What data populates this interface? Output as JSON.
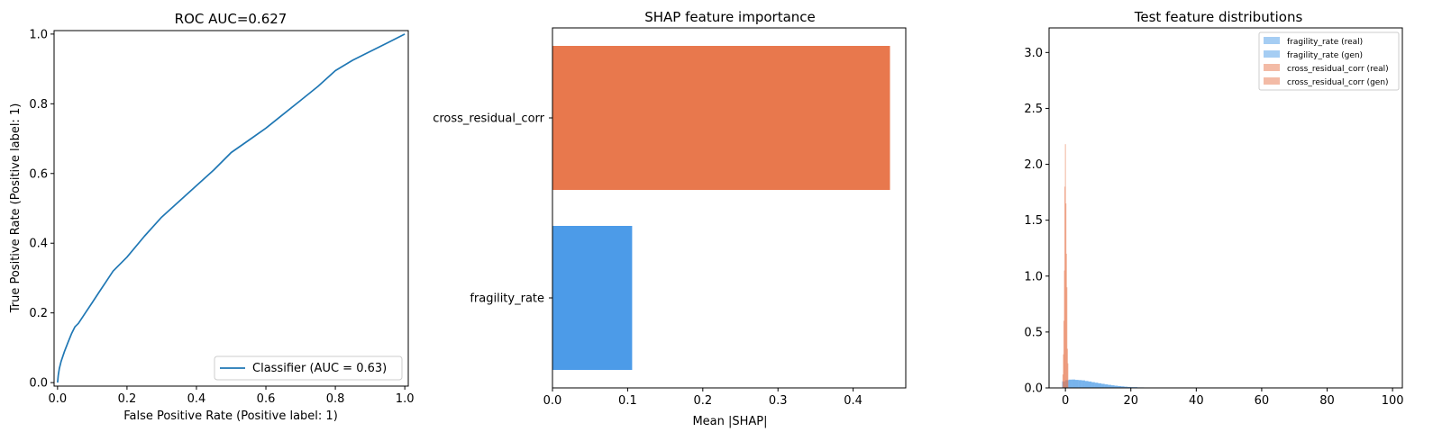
{
  "chart_data": [
    {
      "type": "line",
      "title": "ROC  AUC=0.627",
      "xlabel": "False Positive Rate (Positive label: 1)",
      "ylabel": "True Positive Rate (Positive label: 1)",
      "xlim": [
        -0.01,
        1.01
      ],
      "ylim": [
        -0.01,
        1.01
      ],
      "xticks": [
        0.0,
        0.2,
        0.4,
        0.6,
        0.8,
        1.0
      ],
      "xtick_labels": [
        "0.0",
        "0.2",
        "0.4",
        "0.6",
        "0.8",
        "1.0"
      ],
      "yticks": [
        0.0,
        0.2,
        0.4,
        0.6,
        0.8,
        1.0
      ],
      "ytick_labels": [
        "0.0",
        "0.2",
        "0.4",
        "0.6",
        "0.8",
        "1.0"
      ],
      "legend": "lower-right",
      "grid": false,
      "series": [
        {
          "name": "Classifier (AUC = 0.63)",
          "color": "#1f77b4",
          "x": [
            0.0,
            0.002,
            0.005,
            0.01,
            0.02,
            0.03,
            0.04,
            0.05,
            0.06,
            0.08,
            0.1,
            0.12,
            0.14,
            0.16,
            0.2,
            0.25,
            0.3,
            0.35,
            0.4,
            0.45,
            0.5,
            0.55,
            0.6,
            0.65,
            0.7,
            0.75,
            0.8,
            0.85,
            0.9,
            0.95,
            1.0
          ],
          "y": [
            0.0,
            0.02,
            0.04,
            0.06,
            0.09,
            0.115,
            0.14,
            0.16,
            0.17,
            0.2,
            0.23,
            0.26,
            0.29,
            0.32,
            0.36,
            0.42,
            0.475,
            0.52,
            0.565,
            0.61,
            0.66,
            0.695,
            0.73,
            0.77,
            0.81,
            0.85,
            0.895,
            0.925,
            0.95,
            0.975,
            1.0
          ]
        }
      ]
    },
    {
      "type": "bar",
      "orientation": "horizontal",
      "title": "SHAP feature importance",
      "xlabel": "Mean |SHAP|",
      "ylabel": "",
      "xlim": [
        0,
        0.47
      ],
      "xticks": [
        0.0,
        0.1,
        0.2,
        0.3,
        0.4
      ],
      "xtick_labels": [
        "0.0",
        "0.1",
        "0.2",
        "0.3",
        "0.4"
      ],
      "grid": false,
      "categories": [
        "cross_residual_corr",
        "fragility_rate"
      ],
      "values": [
        0.449,
        0.106
      ],
      "colors": [
        "#e8784d",
        "#4c9be8"
      ]
    },
    {
      "type": "histogram",
      "title": "Test feature distributions",
      "xlabel": "",
      "ylabel": "",
      "xlim": [
        -5,
        103
      ],
      "ylim": [
        0,
        3.22
      ],
      "xticks": [
        0,
        20,
        40,
        60,
        80,
        100
      ],
      "xtick_labels": [
        "0",
        "20",
        "40",
        "60",
        "80",
        "100"
      ],
      "yticks": [
        0.0,
        0.5,
        1.0,
        1.5,
        2.0,
        2.5,
        3.0
      ],
      "ytick_labels": [
        "0.0",
        "0.5",
        "1.0",
        "1.5",
        "2.0",
        "2.5",
        "3.0"
      ],
      "legend": "top-right",
      "grid": false,
      "series": [
        {
          "name": "fragility_rate (real)",
          "color": "#4c9be8",
          "opacity": 0.5,
          "bins": [
            [
              -1,
              0,
              0.06
            ],
            [
              0,
              1,
              0.07
            ],
            [
              1,
              2,
              0.075
            ],
            [
              2,
              3,
              0.075
            ],
            [
              3,
              4,
              0.072
            ],
            [
              4,
              5,
              0.07
            ],
            [
              5,
              6,
              0.068
            ],
            [
              6,
              7,
              0.062
            ],
            [
              7,
              8,
              0.058
            ],
            [
              8,
              9,
              0.052
            ],
            [
              9,
              10,
              0.047
            ],
            [
              10,
              11,
              0.042
            ],
            [
              11,
              12,
              0.037
            ],
            [
              12,
              13,
              0.032
            ],
            [
              13,
              14,
              0.028
            ],
            [
              14,
              15,
              0.024
            ],
            [
              15,
              16,
              0.02
            ],
            [
              16,
              17,
              0.017
            ],
            [
              17,
              18,
              0.014
            ],
            [
              18,
              19,
              0.011
            ],
            [
              19,
              20,
              0.009
            ],
            [
              20,
              22,
              0.007
            ],
            [
              22,
              24,
              0.005
            ],
            [
              24,
              26,
              0.003
            ],
            [
              26,
              28,
              0.002
            ],
            [
              28,
              30,
              0.001
            ]
          ]
        },
        {
          "name": "fragility_rate (gen)",
          "color": "#4c9be8",
          "opacity": 0.5,
          "bins": [
            [
              -1,
              0,
              0.055
            ],
            [
              0,
              1,
              0.068
            ],
            [
              1,
              2,
              0.072
            ],
            [
              2,
              3,
              0.074
            ],
            [
              3,
              4,
              0.071
            ],
            [
              4,
              5,
              0.069
            ],
            [
              5,
              6,
              0.066
            ],
            [
              6,
              7,
              0.061
            ],
            [
              7,
              8,
              0.056
            ],
            [
              8,
              9,
              0.05
            ],
            [
              9,
              10,
              0.045
            ],
            [
              10,
              11,
              0.04
            ],
            [
              11,
              12,
              0.035
            ],
            [
              12,
              13,
              0.03
            ],
            [
              13,
              14,
              0.026
            ],
            [
              14,
              15,
              0.022
            ],
            [
              15,
              16,
              0.019
            ],
            [
              16,
              17,
              0.016
            ],
            [
              17,
              18,
              0.013
            ],
            [
              18,
              19,
              0.01
            ],
            [
              19,
              20,
              0.008
            ],
            [
              20,
              22,
              0.006
            ],
            [
              22,
              24,
              0.004
            ],
            [
              24,
              26,
              0.003
            ],
            [
              26,
              28,
              0.002
            ],
            [
              28,
              30,
              0.001
            ]
          ]
        },
        {
          "name": "cross_residual_corr (real)",
          "color": "#e8784d",
          "opacity": 0.5,
          "bins": [
            [
              -0.9,
              -0.6,
              0.12
            ],
            [
              -0.6,
              -0.3,
              0.6
            ],
            [
              -0.3,
              0.0,
              1.8
            ],
            [
              0.0,
              0.3,
              1.65
            ],
            [
              0.3,
              0.6,
              0.9
            ],
            [
              0.6,
              0.9,
              0.22
            ]
          ]
        },
        {
          "name": "cross_residual_corr (gen)",
          "color": "#e8784d",
          "opacity": 0.5,
          "bins": [
            [
              -0.75,
              -0.45,
              0.3
            ],
            [
              -0.45,
              -0.15,
              1.05
            ],
            [
              -0.15,
              0.15,
              2.18
            ],
            [
              0.15,
              0.45,
              1.2
            ],
            [
              0.45,
              0.75,
              0.35
            ]
          ]
        }
      ]
    }
  ]
}
